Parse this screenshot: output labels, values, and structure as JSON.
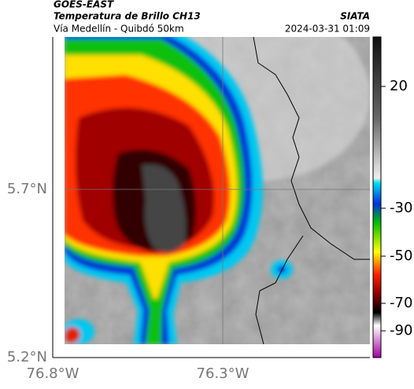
{
  "header": {
    "product": "GOES-EAST",
    "title": "Temperatura de Brillo CH13",
    "source": "SIATA",
    "subtitle": "Vía Medellín - Quibdó 50km",
    "timestamp": "2024-03-31 01:09"
  },
  "axes": {
    "lat_labels": [
      "5.7°N",
      "5.2°N"
    ],
    "lon_labels": [
      "76.8°W",
      "76.3°W"
    ]
  },
  "colorbar": {
    "ticks": [
      20,
      -30,
      -50,
      -70,
      -90
    ]
  }
}
